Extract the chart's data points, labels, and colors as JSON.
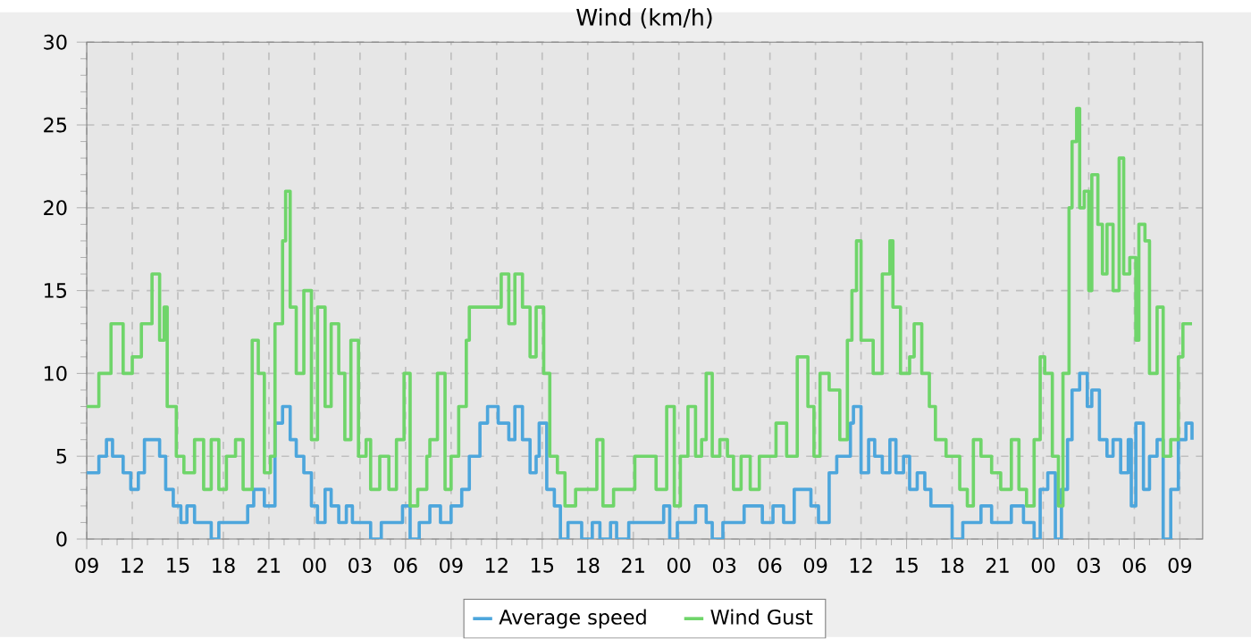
{
  "chart_data": {
    "type": "step",
    "title": "Wind (km/h)",
    "xlim": [
      9,
      82.5
    ],
    "ylim": [
      0,
      30
    ],
    "xticks": [
      {
        "value": 9,
        "label": "09"
      },
      {
        "value": 12,
        "label": "12"
      },
      {
        "value": 15,
        "label": "15"
      },
      {
        "value": 18,
        "label": "18"
      },
      {
        "value": 21,
        "label": "21"
      },
      {
        "value": 24,
        "label": "00"
      },
      {
        "value": 27,
        "label": "03"
      },
      {
        "value": 30,
        "label": "06"
      },
      {
        "value": 33,
        "label": "09"
      },
      {
        "value": 36,
        "label": "12"
      },
      {
        "value": 39,
        "label": "15"
      },
      {
        "value": 42,
        "label": "18"
      },
      {
        "value": 45,
        "label": "21"
      },
      {
        "value": 48,
        "label": "00"
      },
      {
        "value": 51,
        "label": "03"
      },
      {
        "value": 54,
        "label": "06"
      },
      {
        "value": 57,
        "label": "09"
      },
      {
        "value": 60,
        "label": "12"
      },
      {
        "value": 63,
        "label": "15"
      },
      {
        "value": 66,
        "label": "18"
      },
      {
        "value": 69,
        "label": "21"
      },
      {
        "value": 72,
        "label": "00"
      },
      {
        "value": 75,
        "label": "03"
      },
      {
        "value": 78,
        "label": "06"
      },
      {
        "value": 81,
        "label": "09"
      }
    ],
    "yticks": [
      0,
      5,
      10,
      15,
      20,
      25,
      30
    ],
    "grid": true,
    "legend": "bottom",
    "marker": "none",
    "line_style": "solid",
    "series": [
      {
        "name": "Average speed",
        "color": "#4da6dc",
        "x": [
          9.0,
          9.8,
          10.3,
          10.7,
          11.4,
          11.9,
          12.4,
          12.8,
          13.3,
          13.8,
          14.2,
          14.7,
          15.2,
          15.6,
          16.1,
          16.8,
          17.2,
          17.7,
          18.4,
          18.9,
          19.6,
          20.0,
          20.7,
          21.4,
          21.9,
          22.4,
          22.8,
          23.3,
          23.8,
          24.2,
          24.7,
          25.1,
          25.6,
          26.1,
          26.5,
          27.1,
          27.7,
          28.4,
          29.1,
          29.8,
          30.3,
          30.9,
          31.6,
          32.3,
          33.0,
          33.7,
          34.2,
          34.9,
          35.4,
          36.1,
          36.8,
          37.2,
          37.7,
          38.2,
          38.6,
          38.8,
          39.3,
          39.8,
          40.2,
          40.7,
          41.6,
          42.3,
          42.8,
          43.5,
          43.9,
          44.7,
          46.3,
          47.0,
          47.4,
          47.9,
          49.1,
          49.8,
          50.2,
          50.9,
          52.3,
          53.0,
          53.5,
          54.2,
          54.9,
          55.6,
          56.0,
          56.7,
          57.2,
          57.9,
          58.4,
          59.3,
          59.5,
          60.0,
          60.5,
          60.9,
          61.4,
          61.9,
          62.3,
          62.8,
          63.2,
          63.7,
          64.2,
          64.6,
          66.0,
          66.7,
          67.9,
          68.6,
          69.9,
          70.7,
          71.4,
          71.8,
          72.3,
          72.8,
          73.2,
          73.6,
          73.9,
          74.4,
          74.9,
          75.2,
          75.7,
          76.2,
          76.6,
          77.1,
          77.6,
          77.8,
          78.1,
          78.6,
          79.0,
          79.5,
          79.9,
          80.4,
          80.9,
          81.4,
          81.8
        ],
        "values": [
          4,
          5,
          6,
          5,
          4,
          3,
          4,
          6,
          6,
          5,
          3,
          2,
          1,
          2,
          1,
          1,
          0,
          1,
          1,
          1,
          2,
          3,
          2,
          7,
          8,
          6,
          5,
          4,
          2,
          1,
          3,
          2,
          1,
          2,
          1,
          1,
          0,
          1,
          1,
          2,
          0,
          1,
          2,
          1,
          2,
          3,
          5,
          7,
          8,
          7,
          6,
          8,
          6,
          4,
          5,
          7,
          3,
          2,
          0,
          1,
          0,
          1,
          0,
          1,
          0,
          1,
          1,
          2,
          0,
          1,
          2,
          1,
          0,
          1,
          2,
          2,
          1,
          2,
          1,
          3,
          3,
          2,
          1,
          4,
          5,
          7,
          8,
          4,
          6,
          5,
          4,
          6,
          4,
          5,
          3,
          4,
          3,
          2,
          0,
          1,
          2,
          1,
          2,
          1,
          0,
          3,
          4,
          0,
          3,
          6,
          9,
          10,
          8,
          9,
          6,
          5,
          6,
          4,
          6,
          2,
          7,
          3,
          5,
          6,
          0,
          3,
          6,
          7,
          6
        ]
      },
      {
        "name": "Wind Gust",
        "color": "#6fd56a",
        "x": [
          9.0,
          9.8,
          10.6,
          11.4,
          12.0,
          12.6,
          13.3,
          13.8,
          14.1,
          14.3,
          14.9,
          15.4,
          16.1,
          16.7,
          17.2,
          17.7,
          18.2,
          18.8,
          19.3,
          19.9,
          20.3,
          20.7,
          21.1,
          21.4,
          21.9,
          22.1,
          22.4,
          22.8,
          23.3,
          23.8,
          24.2,
          24.7,
          25.1,
          25.6,
          26.0,
          26.4,
          26.9,
          27.4,
          27.7,
          28.3,
          28.9,
          29.4,
          29.9,
          30.3,
          30.8,
          31.4,
          31.6,
          32.1,
          32.6,
          33.0,
          33.5,
          34.0,
          34.2,
          34.9,
          35.6,
          36.3,
          36.8,
          37.2,
          37.7,
          38.2,
          38.6,
          39.1,
          39.5,
          40.0,
          40.5,
          41.2,
          41.9,
          42.6,
          43.0,
          43.7,
          44.5,
          45.1,
          45.7,
          46.5,
          47.2,
          47.7,
          48.1,
          48.6,
          49.1,
          49.5,
          49.8,
          50.2,
          50.7,
          51.2,
          51.6,
          52.1,
          52.7,
          53.3,
          53.8,
          54.4,
          55.1,
          55.8,
          56.5,
          56.9,
          57.3,
          57.9,
          58.6,
          59.1,
          59.4,
          59.7,
          60.0,
          60.5,
          60.8,
          61.4,
          61.9,
          62.1,
          62.6,
          63.2,
          63.5,
          64.0,
          64.5,
          64.9,
          65.6,
          66.0,
          66.5,
          67.0,
          67.4,
          67.9,
          68.6,
          69.2,
          69.9,
          70.4,
          70.9,
          71.4,
          71.8,
          72.1,
          72.6,
          73.0,
          73.3,
          73.7,
          73.9,
          74.2,
          74.4,
          74.7,
          75.0,
          75.2,
          75.6,
          75.9,
          76.2,
          76.6,
          77.0,
          77.3,
          77.7,
          78.1,
          78.3,
          78.7,
          79.0,
          79.5,
          79.9,
          80.4,
          80.9,
          81.2,
          81.8
        ],
        "values": [
          8,
          10,
          13,
          10,
          11,
          13,
          16,
          12,
          14,
          8,
          5,
          4,
          6,
          3,
          6,
          3,
          5,
          6,
          3,
          12,
          10,
          4,
          5,
          13,
          18,
          21,
          14,
          10,
          15,
          6,
          14,
          8,
          13,
          10,
          6,
          12,
          5,
          6,
          3,
          5,
          3,
          6,
          10,
          2,
          3,
          5,
          6,
          10,
          3,
          5,
          8,
          12,
          14,
          14,
          14,
          16,
          13,
          16,
          14,
          11,
          14,
          10,
          5,
          4,
          2,
          3,
          3,
          6,
          2,
          3,
          3,
          5,
          5,
          3,
          8,
          2,
          5,
          8,
          5,
          6,
          10,
          5,
          6,
          5,
          3,
          5,
          3,
          5,
          5,
          7,
          5,
          11,
          8,
          5,
          10,
          9,
          6,
          12,
          15,
          18,
          12,
          12,
          10,
          16,
          18,
          14,
          10,
          11,
          13,
          10,
          8,
          6,
          5,
          5,
          3,
          2,
          6,
          5,
          4,
          3,
          6,
          3,
          2,
          6,
          11,
          10,
          5,
          2,
          10,
          20,
          24,
          26,
          20,
          21,
          15,
          22,
          19,
          16,
          19,
          15,
          23,
          16,
          17,
          12,
          19,
          18,
          10,
          14,
          5,
          6,
          11,
          13,
          13
        ]
      }
    ]
  }
}
